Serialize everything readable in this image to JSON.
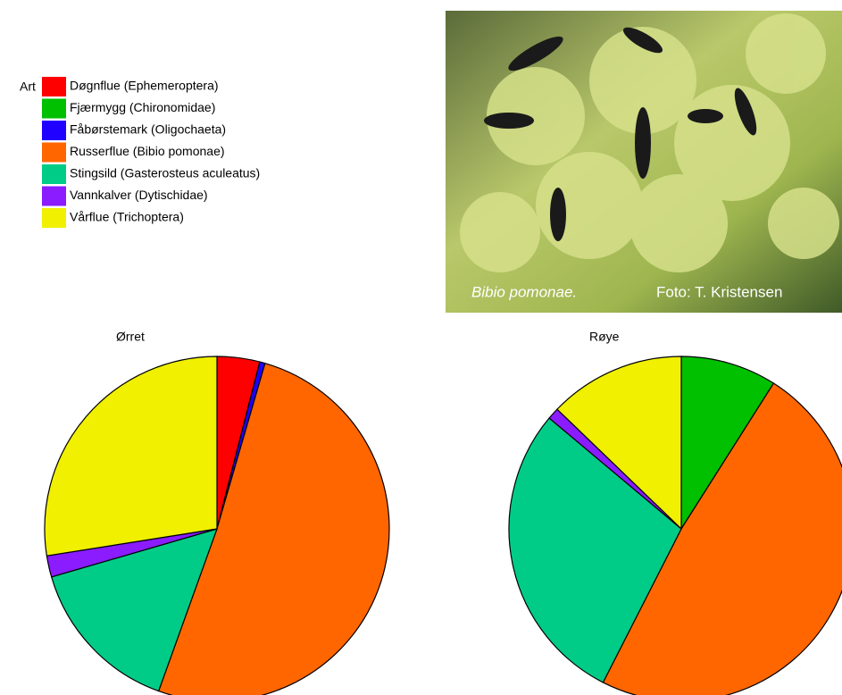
{
  "legend_title": "Art",
  "photo": {
    "caption": "Bibio pomonae.",
    "credit": "Foto: T. Kristensen"
  },
  "chart_data": [
    {
      "type": "pie",
      "title": "Ørret",
      "categories": [
        "Døgnflue (Ephemeroptera)",
        "Fjærmygg (Chironomidae)",
        "Fåbørstemark (Oligochaeta)",
        "Russerflue (Bibio pomonae)",
        "Stingsild (Gasterosteus aculeatus)",
        "Vannkalver (Dytischidae)",
        "Vårflue (Trichoptera)"
      ],
      "colors": [
        "#ff0000",
        "#00c000",
        "#2000ff",
        "#ff6600",
        "#00cc88",
        "#8a1cff",
        "#f0f000"
      ],
      "values": [
        4,
        0,
        0.5,
        51,
        15,
        2,
        27.5
      ]
    },
    {
      "type": "pie",
      "title": "Røye",
      "categories": [
        "Døgnflue (Ephemeroptera)",
        "Fjærmygg (Chironomidae)",
        "Fåbørstemark (Oligochaeta)",
        "Russerflue (Bibio pomonae)",
        "Stingsild (Gasterosteus aculeatus)",
        "Vannkalver (Dytischidae)",
        "Vårflue (Trichoptera)"
      ],
      "colors": [
        "#ff0000",
        "#00c000",
        "#2000ff",
        "#ff6600",
        "#00cc88",
        "#8a1cff",
        "#f0f000"
      ],
      "values": [
        0,
        9,
        0,
        48.5,
        28.6,
        1.1,
        12.8
      ]
    }
  ]
}
